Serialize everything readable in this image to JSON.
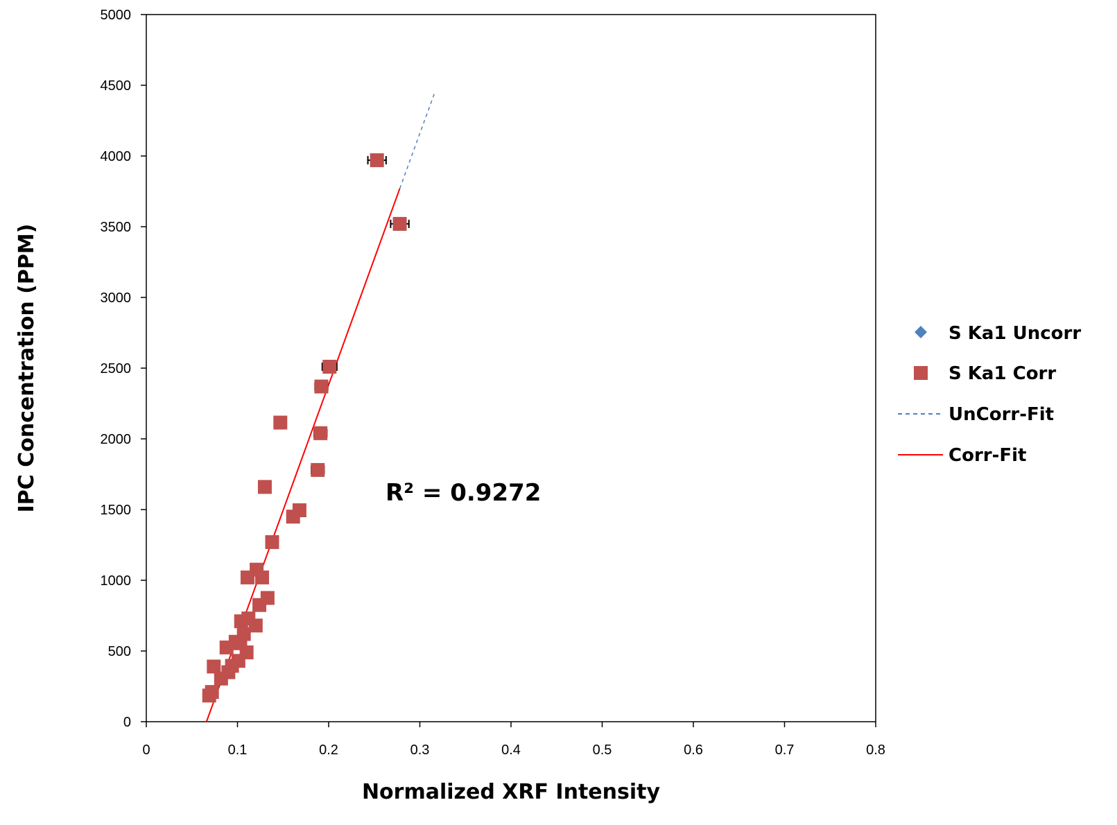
{
  "chart_data": {
    "type": "scatter",
    "title": "",
    "xlabel": "Normalized XRF Intensity",
    "ylabel": "IPC Concentration (PPM)",
    "xlim": [
      0,
      0.8
    ],
    "ylim": [
      0,
      5000
    ],
    "xticks": [
      "0",
      "0.1",
      "0.2",
      "0.3",
      "0.4",
      "0.5",
      "0.6",
      "0.7",
      "0.8"
    ],
    "yticks": [
      "0",
      "500",
      "1000",
      "1500",
      "2000",
      "2500",
      "3000",
      "3500",
      "4000",
      "4500",
      "5000"
    ],
    "grid": false,
    "legend_position": "right",
    "annotation": "R² = 0.9272",
    "series": [
      {
        "name": "S Ka1 Uncorr",
        "marker": "diamond",
        "color": "#4F81BD",
        "points": []
      },
      {
        "name": "S Ka1 Corr",
        "marker": "square",
        "color": "#C0504D",
        "points": [
          {
            "x": 0.253,
            "y": 3970,
            "xerr": 0.01
          },
          {
            "x": 0.278,
            "y": 3520,
            "xerr": 0.01
          },
          {
            "x": 0.201,
            "y": 2510,
            "xerr": 0.008
          },
          {
            "x": 0.192,
            "y": 2370,
            "xerr": 0.007
          },
          {
            "x": 0.147,
            "y": 2115
          },
          {
            "x": 0.191,
            "y": 2040,
            "xerr": 0.007
          },
          {
            "x": 0.188,
            "y": 1780,
            "xerr": 0.007
          },
          {
            "x": 0.13,
            "y": 1660
          },
          {
            "x": 0.168,
            "y": 1495
          },
          {
            "x": 0.161,
            "y": 1450
          },
          {
            "x": 0.138,
            "y": 1270
          },
          {
            "x": 0.121,
            "y": 1075
          },
          {
            "x": 0.111,
            "y": 1020
          },
          {
            "x": 0.127,
            "y": 1020
          },
          {
            "x": 0.133,
            "y": 875
          },
          {
            "x": 0.124,
            "y": 825
          },
          {
            "x": 0.112,
            "y": 730
          },
          {
            "x": 0.104,
            "y": 710
          },
          {
            "x": 0.12,
            "y": 680
          },
          {
            "x": 0.107,
            "y": 620
          },
          {
            "x": 0.098,
            "y": 565
          },
          {
            "x": 0.103,
            "y": 555
          },
          {
            "x": 0.088,
            "y": 525
          },
          {
            "x": 0.11,
            "y": 490
          },
          {
            "x": 0.101,
            "y": 430
          },
          {
            "x": 0.094,
            "y": 395
          },
          {
            "x": 0.074,
            "y": 390
          },
          {
            "x": 0.09,
            "y": 350
          },
          {
            "x": 0.082,
            "y": 305
          },
          {
            "x": 0.072,
            "y": 210
          },
          {
            "x": 0.069,
            "y": 185
          }
        ]
      },
      {
        "name": "UnCorr-Fit",
        "style": "dashed",
        "color": "#4F81BD",
        "points": [
          {
            "x": 0.278,
            "y": 3770
          },
          {
            "x": 0.317,
            "y": 4460
          }
        ]
      },
      {
        "name": "Corr-Fit",
        "style": "solid",
        "color": "#FF0000",
        "points": [
          {
            "x": 0.066,
            "y": 0
          },
          {
            "x": 0.278,
            "y": 3770
          }
        ]
      }
    ]
  }
}
